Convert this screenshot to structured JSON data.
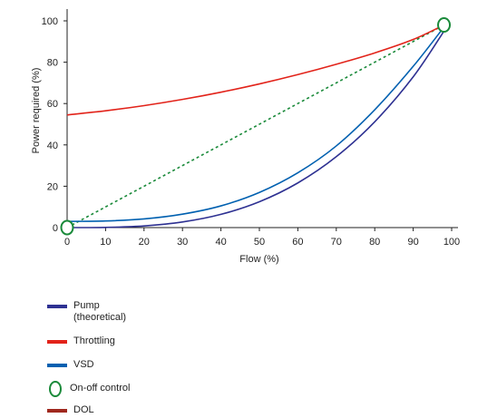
{
  "chart_data": {
    "type": "line",
    "title": "",
    "xlabel": "Flow (%)",
    "ylabel": "Power required (%)",
    "xlim": [
      0,
      100
    ],
    "ylim": [
      0,
      100
    ],
    "x_ticks": [
      "0",
      "10",
      "20",
      "30",
      "40",
      "50",
      "60",
      "70",
      "80",
      "90",
      "100"
    ],
    "y_ticks": [
      "0",
      "20",
      "40",
      "60",
      "80",
      "100"
    ],
    "grid": false,
    "legend_position": "bottom-left",
    "series": [
      {
        "name": "Pump\n(theoretical)",
        "color": "#2e3192",
        "style": "solid",
        "x": [
          0,
          10,
          20,
          30,
          40,
          50,
          60,
          70,
          80,
          90,
          98
        ],
        "y": [
          0,
          0.1,
          0.8,
          2.7,
          6.4,
          12.5,
          21.6,
          34.3,
          51.2,
          72.9,
          95
        ]
      },
      {
        "name": "Throttling",
        "color": "#e2231a",
        "style": "solid",
        "x": [
          0,
          10,
          20,
          30,
          40,
          50,
          60,
          70,
          80,
          90,
          98
        ],
        "y": [
          54.5,
          56.5,
          59,
          62,
          65.5,
          69.5,
          74,
          79,
          84.5,
          91,
          98
        ]
      },
      {
        "name": "VSD",
        "color": "#0060b0",
        "style": "solid",
        "x": [
          0,
          10,
          20,
          30,
          40,
          50,
          60,
          70,
          80,
          90,
          98
        ],
        "y": [
          3,
          3.2,
          4.2,
          6.5,
          10.5,
          17,
          26.5,
          39.5,
          57,
          78,
          97
        ]
      },
      {
        "name": "DOL",
        "color": "#1a8a3a",
        "style": "dashed",
        "x": [
          0,
          98
        ],
        "y": [
          0,
          98
        ]
      }
    ],
    "markers": [
      {
        "name": "On-off control",
        "color": "#1a8a3a",
        "points": [
          {
            "x": 0,
            "y": 0
          },
          {
            "x": 98,
            "y": 98
          }
        ]
      }
    ],
    "legend": [
      {
        "label": "Pump\n(theoretical)",
        "color": "#2e3192",
        "kind": "bar"
      },
      {
        "label": "Throttling",
        "color": "#e2231a",
        "kind": "bar"
      },
      {
        "label": "VSD",
        "color": "#0060b0",
        "kind": "bar"
      },
      {
        "label": "On-off control",
        "color": "#1a8a3a",
        "kind": "ring"
      },
      {
        "label": "DOL",
        "color": "#a0281e",
        "kind": "bar"
      }
    ]
  }
}
